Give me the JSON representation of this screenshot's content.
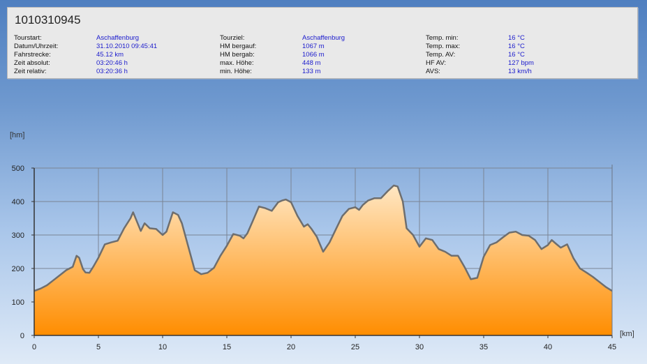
{
  "header": {
    "tour_id": "1010310945",
    "col1": [
      {
        "label": "Tourstart:",
        "value": "Aschaffenburg"
      },
      {
        "label": "Datum/Uhrzeit:",
        "value": "31.10.2010 09:45:41"
      },
      {
        "label": "Fahrstrecke:",
        "value": "45.12 km"
      },
      {
        "label": "Zeit absolut:",
        "value": "03:20:46 h"
      },
      {
        "label": "Zeit relativ:",
        "value": "03:20:36 h"
      }
    ],
    "col2": [
      {
        "label": "Tourziel:",
        "value": "Aschaffenburg"
      },
      {
        "label": "HM bergauf:",
        "value": "1067 m"
      },
      {
        "label": "HM bergab:",
        "value": "1066 m"
      },
      {
        "label": "max. Höhe:",
        "value": "448 m"
      },
      {
        "label": "min. Höhe:",
        "value": "133 m"
      }
    ],
    "col3": [
      {
        "label": "Temp. min:",
        "value": "16 °C"
      },
      {
        "label": "Temp. max:",
        "value": "16 °C"
      },
      {
        "label": "Temp. AV:",
        "value": "16 °C"
      },
      {
        "label": "HF AV:",
        "value": "127 bpm"
      },
      {
        "label": "AVS:",
        "value": "13 km/h"
      }
    ]
  },
  "chart_data": {
    "type": "area",
    "xlabel": "[km]",
    "ylabel": "[hm]",
    "xlim": [
      0,
      45
    ],
    "ylim": [
      0,
      500
    ],
    "x_ticks": [
      0,
      5,
      10,
      15,
      20,
      25,
      30,
      35,
      40,
      45
    ],
    "y_ticks": [
      0,
      100,
      200,
      300,
      400,
      500
    ],
    "grid": true,
    "fill_colors": [
      "#ffe7c4",
      "#ff8d00"
    ],
    "line_color": "#6e6e6e",
    "series": [
      {
        "x": [
          0,
          0.5,
          1,
          1.5,
          2,
          2.5,
          3,
          3.3,
          3.5,
          3.8,
          4,
          4.3,
          4.6,
          5,
          5.5,
          6,
          6.5,
          7,
          7.5,
          7.7,
          8,
          8.3,
          8.6,
          9,
          9.5,
          10,
          10.3,
          10.8,
          11.2,
          11.5,
          12,
          12.5,
          13,
          13.5,
          14,
          14.5,
          15,
          15.5,
          16,
          16.3,
          16.6,
          17,
          17.5,
          18,
          18.5,
          19,
          19.3,
          19.6,
          20,
          20.5,
          21,
          21.3,
          21.6,
          22,
          22.5,
          23,
          23.5,
          24,
          24.5,
          25,
          25.3,
          25.6,
          26,
          26.5,
          27,
          27.5,
          28,
          28.3,
          28.7,
          29,
          29.5,
          30,
          30.5,
          31,
          31.5,
          32,
          32.5,
          33,
          33.5,
          34,
          34.5,
          35,
          35.5,
          36,
          36.5,
          37,
          37.5,
          38,
          38.5,
          39,
          39.5,
          40,
          40.3,
          40.6,
          41,
          41.5,
          42,
          42.5,
          43,
          43.5,
          44,
          44.5,
          45
        ],
        "y": [
          133,
          140,
          150,
          165,
          180,
          195,
          205,
          238,
          232,
          198,
          188,
          187,
          205,
          232,
          272,
          278,
          283,
          320,
          350,
          368,
          340,
          312,
          335,
          320,
          318,
          300,
          310,
          368,
          360,
          335,
          265,
          195,
          183,
          187,
          202,
          238,
          268,
          303,
          298,
          290,
          305,
          340,
          385,
          380,
          372,
          398,
          403,
          406,
          398,
          357,
          325,
          332,
          318,
          295,
          250,
          278,
          318,
          357,
          378,
          383,
          375,
          390,
          403,
          410,
          410,
          430,
          448,
          445,
          400,
          320,
          300,
          265,
          290,
          285,
          258,
          250,
          238,
          238,
          205,
          168,
          172,
          235,
          270,
          278,
          293,
          307,
          310,
          300,
          298,
          285,
          258,
          270,
          285,
          275,
          262,
          272,
          230,
          200,
          188,
          175,
          160,
          145,
          133
        ]
      }
    ]
  }
}
